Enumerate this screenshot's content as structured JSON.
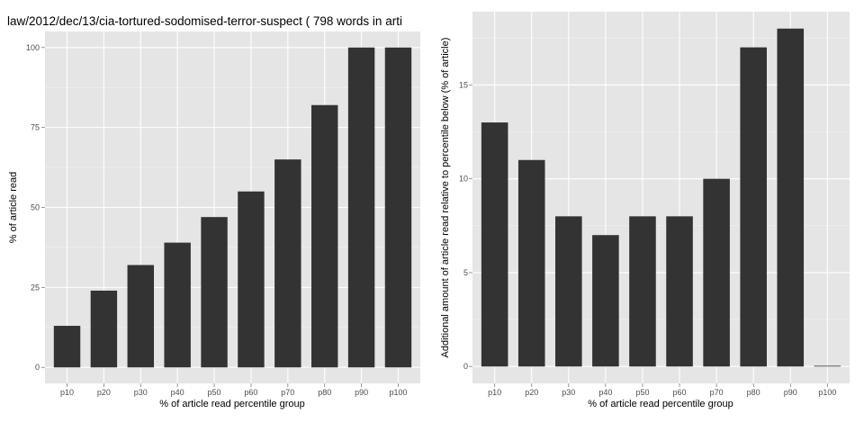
{
  "title": "law/2012/dec/13/cia-tortured-sodomised-terror-suspect ( 798 words in arti",
  "chart_data": [
    {
      "type": "bar",
      "categories": [
        "p10",
        "p20",
        "p30",
        "p40",
        "p50",
        "p60",
        "p70",
        "p80",
        "p90",
        "p100"
      ],
      "values": [
        13,
        24,
        32,
        39,
        47,
        55,
        65,
        82,
        100,
        100
      ],
      "xlabel": "% of article read percentile group",
      "ylabel": "% of article read",
      "ylim": [
        0,
        100
      ],
      "yticks": [
        0,
        25,
        50,
        75,
        100
      ],
      "grid": true,
      "bar_color": "#333333",
      "panel_color": "#e5e5e5"
    },
    {
      "type": "bar",
      "categories": [
        "p10",
        "p20",
        "p30",
        "p40",
        "p50",
        "p60",
        "p70",
        "p80",
        "p90",
        "p100"
      ],
      "values": [
        13,
        11,
        8,
        7,
        8,
        8,
        10,
        17,
        18,
        0
      ],
      "xlabel": "% of article read percentile group",
      "ylabel": "Additional amount of article read relative to percentile below (% of article)",
      "ylim": [
        0,
        18
      ],
      "yticks": [
        0,
        5,
        10,
        15
      ],
      "grid": true,
      "bar_color": "#333333",
      "panel_color": "#e5e5e5"
    }
  ]
}
